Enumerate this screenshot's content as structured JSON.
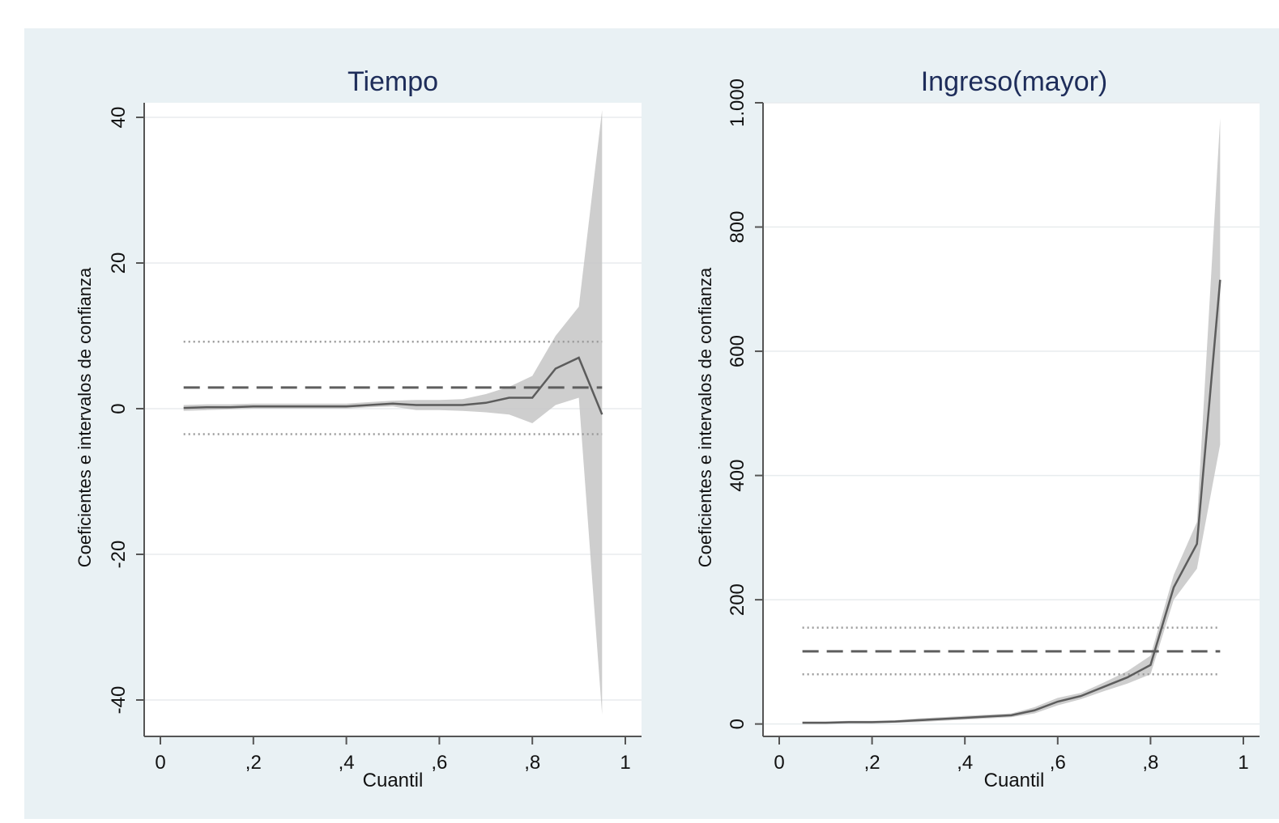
{
  "chart_data": [
    {
      "type": "line",
      "title": "Tiempo",
      "xlabel": "Cuantil",
      "ylabel": "Coeficientes e intervalos de confianza",
      "xlim": [
        0,
        1
      ],
      "ylim": [
        -45,
        42
      ],
      "x_ticks": [
        0,
        0.2,
        0.4,
        0.6,
        0.8,
        1
      ],
      "x_tick_labels": [
        "0",
        ",2",
        ",4",
        ",6",
        ",8",
        "1"
      ],
      "y_ticks": [
        -40,
        -20,
        0,
        20,
        40
      ],
      "y_tick_labels": [
        "-40",
        "-20",
        "0",
        "20",
        "40"
      ],
      "grid": true,
      "series": [
        {
          "role": "quantile_coefficient",
          "x": [
            0.05,
            0.1,
            0.15,
            0.2,
            0.25,
            0.3,
            0.35,
            0.4,
            0.45,
            0.5,
            0.55,
            0.6,
            0.65,
            0.7,
            0.75,
            0.8,
            0.85,
            0.9,
            0.95
          ],
          "values": [
            0.1,
            0.2,
            0.2,
            0.3,
            0.3,
            0.3,
            0.3,
            0.3,
            0.5,
            0.7,
            0.5,
            0.5,
            0.5,
            0.8,
            1.5,
            1.5,
            5.5,
            7.0,
            -0.8
          ],
          "ci_lower": [
            -0.3,
            -0.2,
            -0.1,
            0.0,
            0.0,
            0.0,
            0.0,
            0.0,
            0.2,
            0.3,
            -0.2,
            -0.2,
            -0.3,
            -0.5,
            -0.8,
            -2.0,
            0.5,
            1.5,
            -42.0
          ],
          "ci_upper": [
            0.5,
            0.6,
            0.6,
            0.7,
            0.7,
            0.7,
            0.7,
            0.7,
            0.9,
            1.1,
            1.2,
            1.2,
            1.3,
            2.0,
            3.0,
            4.5,
            10.0,
            14.0,
            41.0
          ]
        },
        {
          "role": "ols_coefficient",
          "x": [
            0.05,
            0.95
          ],
          "values": [
            2.9,
            2.9
          ],
          "ci_lower": [
            -3.5,
            -3.5
          ],
          "ci_upper": [
            9.2,
            9.2
          ]
        }
      ]
    },
    {
      "type": "line",
      "title": "Ingreso(mayor)",
      "xlabel": "Cuantil",
      "ylabel": "Coeficientes e intervalos de confianza",
      "xlim": [
        0,
        1
      ],
      "ylim": [
        -20,
        1000
      ],
      "x_ticks": [
        0,
        0.2,
        0.4,
        0.6,
        0.8,
        1
      ],
      "x_tick_labels": [
        "0",
        ",2",
        ",4",
        ",6",
        ",8",
        "1"
      ],
      "y_ticks": [
        0,
        200,
        400,
        600,
        800,
        1000
      ],
      "y_tick_labels": [
        "0",
        "200",
        "400",
        "600",
        "800",
        "1.000"
      ],
      "grid": true,
      "series": [
        {
          "role": "quantile_coefficient",
          "x": [
            0.05,
            0.1,
            0.15,
            0.2,
            0.25,
            0.3,
            0.35,
            0.4,
            0.45,
            0.5,
            0.55,
            0.6,
            0.65,
            0.7,
            0.75,
            0.8,
            0.85,
            0.9,
            0.95
          ],
          "values": [
            2,
            2,
            3,
            3,
            4,
            6,
            8,
            10,
            12,
            14,
            22,
            36,
            45,
            60,
            75,
            95,
            220,
            290,
            715
          ],
          "ci_lower": [
            0,
            0,
            1,
            1,
            2,
            3,
            5,
            7,
            9,
            11,
            17,
            30,
            40,
            53,
            65,
            80,
            200,
            250,
            450
          ],
          "ci_upper": [
            4,
            4,
            5,
            5,
            6,
            9,
            11,
            13,
            15,
            17,
            27,
            42,
            50,
            67,
            85,
            110,
            240,
            325,
            975
          ]
        },
        {
          "role": "ols_coefficient",
          "x": [
            0.05,
            0.95
          ],
          "values": [
            117,
            117
          ],
          "ci_lower": [
            80,
            80
          ],
          "ci_upper": [
            155,
            155
          ]
        }
      ]
    }
  ],
  "colors": {
    "figure_background": "#e9f1f4",
    "plot_background": "#ffffff",
    "gridline": "#e8ecee",
    "axis": "#555555",
    "band": "#c9c9c9",
    "coef_line": "#5c5c5c",
    "ols_line": "#5e5e5e",
    "ols_ci_dots": "#9a9a9a",
    "title_text": "#1e2d5a"
  }
}
